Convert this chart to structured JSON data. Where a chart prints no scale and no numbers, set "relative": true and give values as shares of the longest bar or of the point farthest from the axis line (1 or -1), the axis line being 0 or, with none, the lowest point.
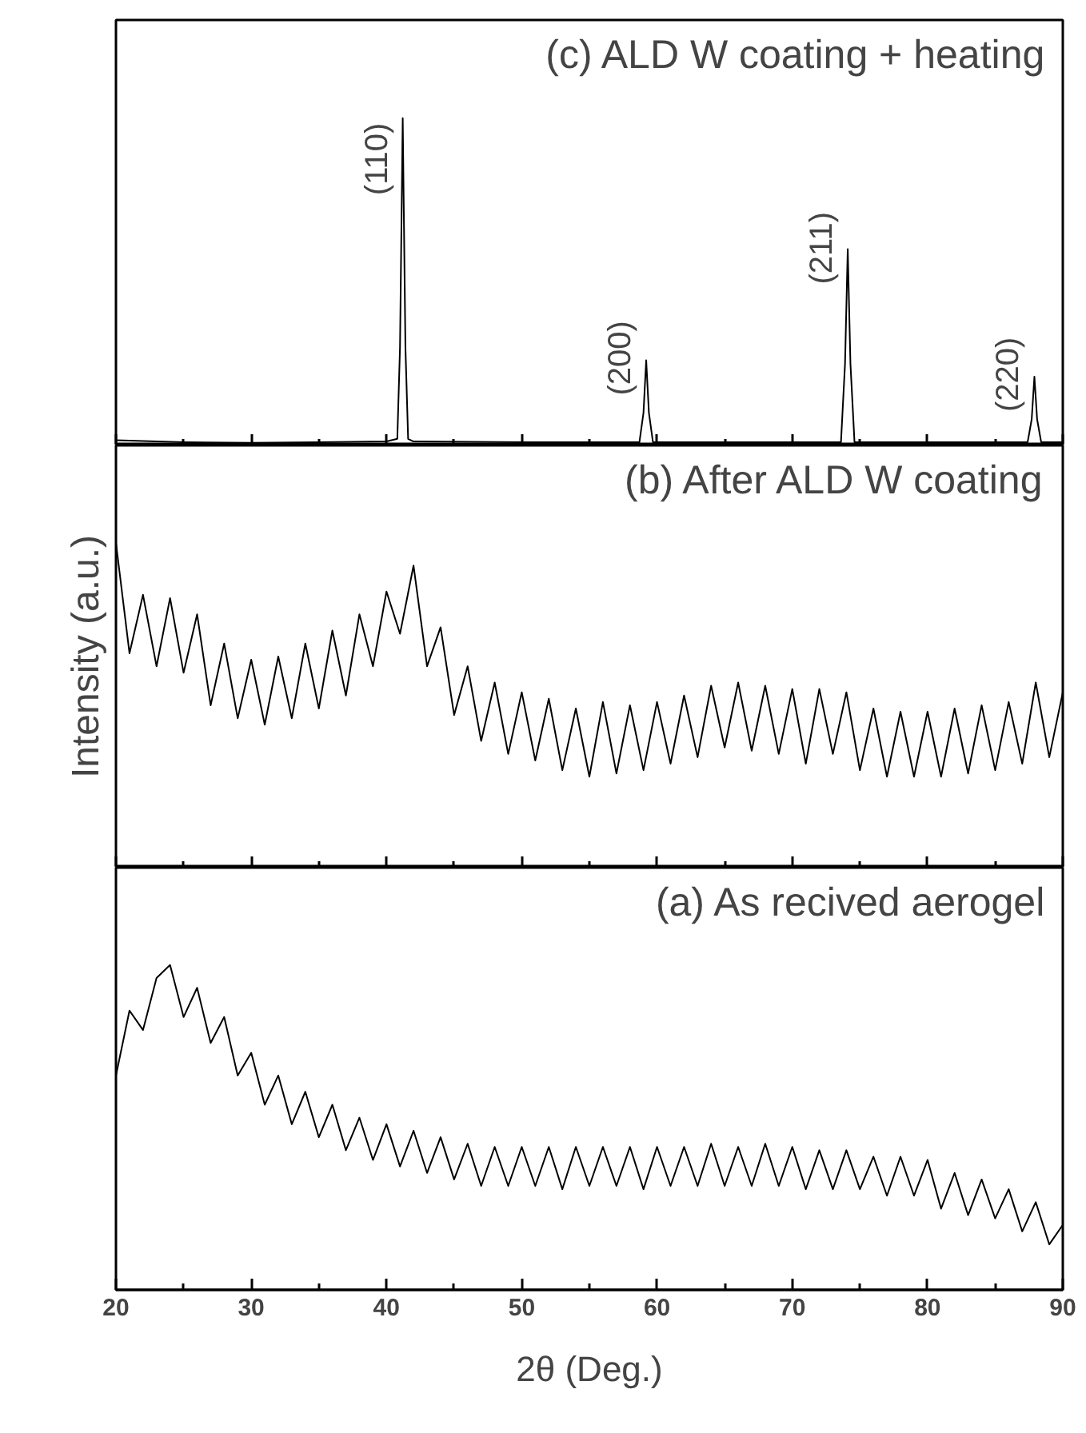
{
  "chart_data": [
    {
      "type": "line",
      "relative": true,
      "annotations": [
        "(c) ALD W coating + heating",
        {
          "text": "(110)",
          "x": 41.2,
          "y": 1
        },
        {
          "text": "(200)",
          "x": 59.2,
          "y": 0.26
        },
        {
          "text": "(211)",
          "x": 74.1,
          "y": 0.6
        },
        {
          "text": "(220)",
          "x": 87.9,
          "y": 0.21
        }
      ],
      "x": [
        20,
        25,
        30,
        35,
        40,
        40.8,
        41.0,
        41.2,
        41.4,
        41.6,
        42,
        50,
        58.7,
        59.0,
        59.2,
        59.4,
        59.7,
        73.6,
        73.9,
        74.1,
        74.3,
        74.6,
        87.4,
        87.7,
        87.9,
        88.1,
        88.4,
        90
      ],
      "series": [
        {
          "color": "#000000",
          "values": [
            0.016,
            0.01,
            0.008,
            0.01,
            0.012,
            0.02,
            0.3,
            1,
            0.3,
            0.02,
            0.012,
            0.01,
            0.01,
            0.1,
            0.26,
            0.1,
            0.01,
            0.01,
            0.25,
            0.6,
            0.25,
            0.01,
            0.01,
            0.08,
            0.21,
            0.08,
            0.01,
            0.01
          ]
        }
      ],
      "xlim": [
        20,
        90
      ],
      "xticks": [
        20,
        {
          "value": 25,
          "label": null
        },
        30,
        {
          "value": 35,
          "label": null
        },
        40,
        {
          "value": 45,
          "label": null
        },
        50,
        {
          "value": 55,
          "label": null
        },
        60,
        {
          "value": 65,
          "label": null
        },
        70,
        {
          "value": 75,
          "label": null
        },
        80,
        {
          "value": 85,
          "label": null
        },
        90
      ],
      "tick_labels": false
    },
    {
      "type": "line",
      "relative": true,
      "annotations": [
        "(b) After ALD W coating"
      ],
      "ylabel": "Intensity (a.u.)",
      "x": [
        20,
        21,
        22,
        23,
        24,
        25,
        26,
        27,
        28,
        29,
        30,
        31,
        32,
        33,
        34,
        35,
        36,
        37,
        38,
        39,
        40,
        41,
        42,
        43,
        44,
        45,
        46,
        47,
        48,
        49,
        50,
        51,
        52,
        53,
        54,
        55,
        56,
        57,
        58,
        59,
        60,
        61,
        62,
        63,
        64,
        65,
        66,
        67,
        68,
        69,
        70,
        71,
        72,
        73,
        74,
        75,
        76,
        77,
        78,
        79,
        80,
        81,
        82,
        83,
        84,
        85,
        86,
        87,
        88,
        89,
        90
      ],
      "series": [
        {
          "color": "#000000",
          "values": [
            1.0,
            0.66,
            0.84,
            0.62,
            0.83,
            0.6,
            0.78,
            0.5,
            0.69,
            0.46,
            0.64,
            0.44,
            0.65,
            0.46,
            0.69,
            0.49,
            0.73,
            0.53,
            0.78,
            0.62,
            0.85,
            0.72,
            0.93,
            0.62,
            0.74,
            0.47,
            0.62,
            0.39,
            0.57,
            0.35,
            0.54,
            0.33,
            0.52,
            0.3,
            0.49,
            0.28,
            0.51,
            0.29,
            0.5,
            0.3,
            0.51,
            0.32,
            0.53,
            0.34,
            0.56,
            0.37,
            0.57,
            0.36,
            0.56,
            0.35,
            0.55,
            0.32,
            0.55,
            0.35,
            0.54,
            0.3,
            0.49,
            0.28,
            0.48,
            0.28,
            0.48,
            0.28,
            0.49,
            0.29,
            0.5,
            0.3,
            0.51,
            0.32,
            0.57,
            0.34,
            0.54
          ]
        }
      ],
      "xlim": [
        20,
        90
      ],
      "xticks": [
        20,
        {
          "value": 25,
          "label": null
        },
        30,
        {
          "value": 35,
          "label": null
        },
        40,
        {
          "value": 45,
          "label": null
        },
        50,
        {
          "value": 55,
          "label": null
        },
        60,
        {
          "value": 65,
          "label": null
        },
        70,
        {
          "value": 75,
          "label": null
        },
        80,
        {
          "value": 85,
          "label": null
        },
        90
      ],
      "tick_labels": false
    },
    {
      "type": "line",
      "relative": true,
      "annotations": [
        "(a) As recived aerogel"
      ],
      "xlabel": "2θ (Deg.)",
      "x": [
        20,
        21,
        22,
        23,
        24,
        25,
        26,
        27,
        28,
        29,
        30,
        31,
        32,
        33,
        34,
        35,
        36,
        37,
        38,
        39,
        40,
        41,
        42,
        43,
        44,
        45,
        46,
        47,
        48,
        49,
        50,
        51,
        52,
        53,
        54,
        55,
        56,
        57,
        58,
        59,
        60,
        61,
        62,
        63,
        64,
        65,
        66,
        67,
        68,
        69,
        70,
        71,
        72,
        73,
        74,
        75,
        76,
        77,
        78,
        79,
        80,
        81,
        82,
        83,
        84,
        85,
        86,
        87,
        88,
        89,
        90
      ],
      "series": [
        {
          "color": "#000000",
          "values": [
            0.66,
            0.86,
            0.8,
            0.96,
            1.0,
            0.84,
            0.93,
            0.76,
            0.84,
            0.66,
            0.73,
            0.57,
            0.66,
            0.51,
            0.61,
            0.47,
            0.57,
            0.43,
            0.53,
            0.4,
            0.51,
            0.38,
            0.49,
            0.36,
            0.47,
            0.34,
            0.45,
            0.32,
            0.44,
            0.32,
            0.44,
            0.32,
            0.44,
            0.31,
            0.44,
            0.32,
            0.44,
            0.32,
            0.44,
            0.31,
            0.44,
            0.32,
            0.44,
            0.32,
            0.45,
            0.32,
            0.44,
            0.32,
            0.45,
            0.32,
            0.44,
            0.31,
            0.43,
            0.31,
            0.43,
            0.31,
            0.41,
            0.29,
            0.41,
            0.29,
            0.4,
            0.25,
            0.36,
            0.23,
            0.34,
            0.22,
            0.31,
            0.18,
            0.27,
            0.14,
            0.2
          ]
        }
      ],
      "xlim": [
        20,
        90
      ],
      "xticks": [
        20,
        {
          "value": 25,
          "label": null
        },
        30,
        {
          "value": 35,
          "label": null
        },
        40,
        {
          "value": 45,
          "label": null
        },
        50,
        {
          "value": 55,
          "label": null
        },
        60,
        {
          "value": 65,
          "label": null
        },
        70,
        {
          "value": 75,
          "label": null
        },
        80,
        {
          "value": 85,
          "label": null
        },
        90
      ],
      "tick_labels": "x"
    }
  ]
}
